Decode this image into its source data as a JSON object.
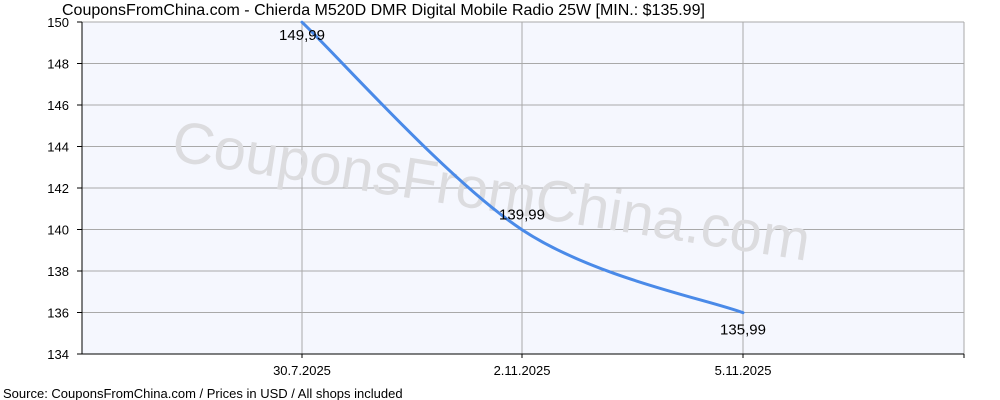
{
  "title": "CouponsFromChina.com - Chierda M520D DMR Digital Mobile Radio 25W [MIN.: $135.99]",
  "footer": "Source: CouponsFromChina.com / Prices in USD / All shops included",
  "watermark": "CouponsFromChina.com",
  "colors": {
    "line": "#4a8ae8",
    "plot_bg": "#f5f7fe",
    "grid": "#a9a9a9",
    "axis": "#000000",
    "watermark": "#dcdcdf"
  },
  "chart_data": {
    "type": "line",
    "title": "CouponsFromChina.com - Chierda M520D DMR Digital Mobile Radio 25W [MIN.: $135.99]",
    "xlabel": "",
    "ylabel": "",
    "categories": [
      "30.7.2025",
      "2.11.2025",
      "5.11.2025"
    ],
    "series": [
      {
        "name": "Price (USD)",
        "values": [
          149.99,
          139.99,
          135.99
        ],
        "labels": [
          "149,99",
          "139,99",
          "135,99"
        ]
      }
    ],
    "ylim": [
      134,
      150
    ],
    "yticks": [
      134,
      136,
      138,
      140,
      142,
      144,
      146,
      148,
      150
    ],
    "grid": true,
    "legend": "none",
    "smooth": true
  }
}
